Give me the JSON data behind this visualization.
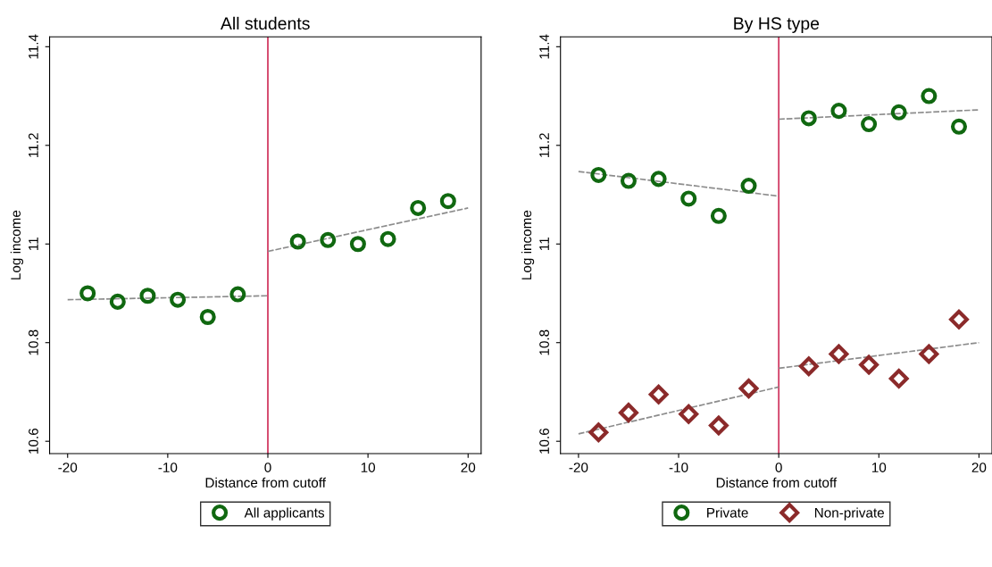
{
  "chart_data": [
    {
      "type": "scatter",
      "title": "All students",
      "xlabel": "Distance from cutoff",
      "ylabel": "Log income",
      "xlim": [
        -21.8,
        21.3
      ],
      "xticks": [
        -20,
        -10,
        0,
        10,
        20
      ],
      "ylim": [
        10.575,
        11.42
      ],
      "yticks": [
        10.6,
        10.8,
        11,
        11.2,
        11.4
      ],
      "grid": false,
      "legend": "bottom",
      "ref_lines": [
        {
          "axis": "x",
          "value": 0,
          "color": "#d23c64"
        }
      ],
      "series": [
        {
          "name": "All applicants",
          "marker": "circle",
          "color": "#106810",
          "x": [
            -18,
            -15,
            -12,
            -9,
            -6,
            -3,
            3,
            6,
            9,
            12,
            15,
            18
          ],
          "values": [
            10.9,
            10.883,
            10.895,
            10.887,
            10.852,
            10.898,
            11.005,
            11.008,
            11.0,
            11.01,
            11.073,
            11.087
          ]
        },
        {
          "type": "line",
          "line_style": "dashed",
          "color": "#8c8c8c",
          "x": [
            -20,
            0
          ],
          "values": [
            10.887,
            10.895
          ]
        },
        {
          "type": "line",
          "line_style": "dashed",
          "color": "#8c8c8c",
          "x": [
            0,
            20
          ],
          "values": [
            10.985,
            11.073
          ]
        }
      ]
    },
    {
      "type": "scatter",
      "title": "By HS type",
      "xlabel": "Distance from cutoff",
      "ylabel": "Log income",
      "xlim": [
        -21.8,
        21.3
      ],
      "xticks": [
        -20,
        -10,
        0,
        10,
        20
      ],
      "ylim": [
        10.575,
        11.42
      ],
      "yticks": [
        10.6,
        10.8,
        11,
        11.2,
        11.4
      ],
      "grid": false,
      "legend": "bottom",
      "ref_lines": [
        {
          "axis": "x",
          "value": 0,
          "color": "#d23c64"
        }
      ],
      "series": [
        {
          "name": "Private",
          "marker": "circle",
          "color": "#106810",
          "x": [
            -18,
            -15,
            -12,
            -9,
            -6,
            -3,
            3,
            6,
            9,
            12,
            15,
            18
          ],
          "values": [
            11.14,
            11.128,
            11.132,
            11.092,
            11.057,
            11.118,
            11.255,
            11.27,
            11.243,
            11.267,
            11.3,
            11.238
          ]
        },
        {
          "name": "Non-private",
          "marker": "diamond",
          "color": "#8b2a2a",
          "x": [
            -18,
            -15,
            -12,
            -9,
            -6,
            -3,
            3,
            6,
            9,
            12,
            15,
            18
          ],
          "values": [
            10.618,
            10.658,
            10.695,
            10.655,
            10.632,
            10.707,
            10.752,
            10.777,
            10.755,
            10.727,
            10.777,
            10.847
          ]
        },
        {
          "type": "line",
          "line_style": "dashed",
          "color": "#8c8c8c",
          "x": [
            -20,
            0
          ],
          "values": [
            11.147,
            11.097
          ]
        },
        {
          "type": "line",
          "line_style": "dashed",
          "color": "#8c8c8c",
          "x": [
            0,
            20
          ],
          "values": [
            11.253,
            11.272
          ]
        },
        {
          "type": "line",
          "line_style": "dashed",
          "color": "#8c8c8c",
          "x": [
            -20,
            0
          ],
          "values": [
            10.615,
            10.71
          ]
        },
        {
          "type": "line",
          "line_style": "dashed",
          "color": "#8c8c8c",
          "x": [
            0,
            20
          ],
          "values": [
            10.748,
            10.8
          ]
        }
      ]
    }
  ]
}
